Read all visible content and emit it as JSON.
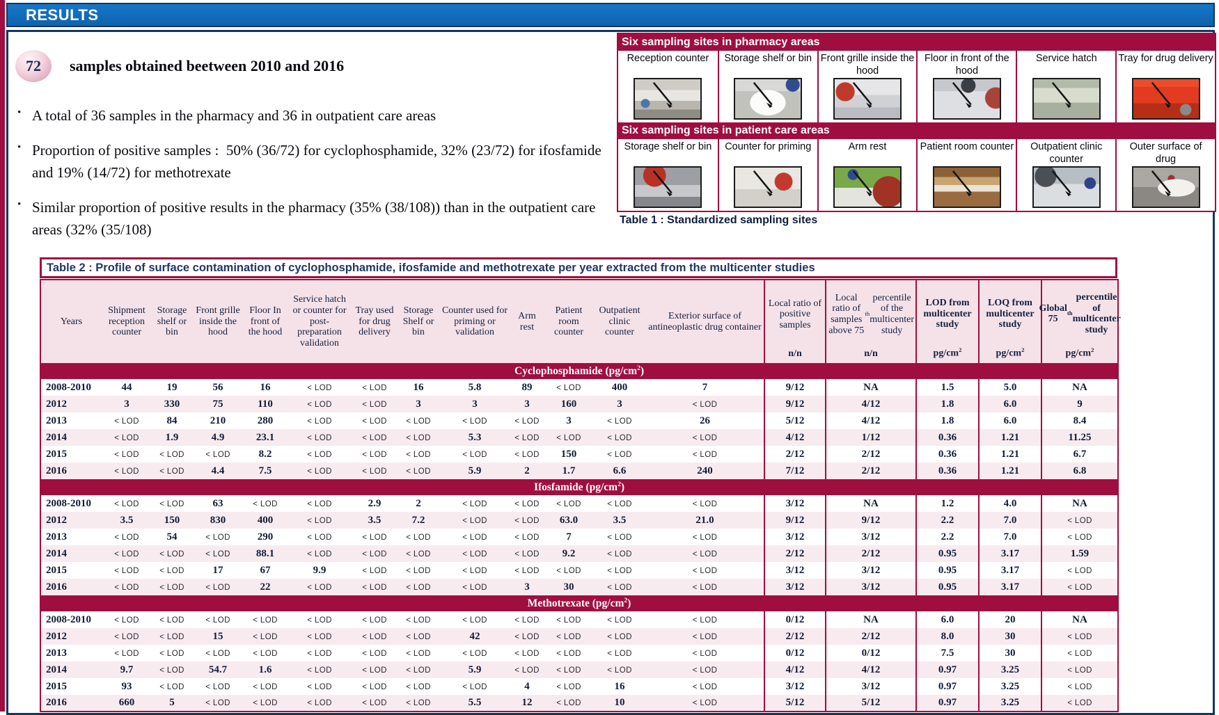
{
  "colors": {
    "accent_maroon": "#a00e3f",
    "header_blue": "#1168b5",
    "frame_navy": "#16355f",
    "row_pink": "#f8ebf0",
    "header_cell_pink": "#f5e2e9",
    "badge_pink": "#e3aec3"
  },
  "header": {
    "title": "RESULTS"
  },
  "summary": {
    "badge": "72",
    "badge_caption": "samples obtained beetween 2010 and 2016",
    "bullets": [
      "A total of 36 samples in the pharmacy and 36 in outpatient care areas",
      "Proportion of positive samples :  50% (36/72) for cyclophosphamide, 32% (23/72) for ifosfamide and 19% (14/72) for methotrexate",
      "Similar proportion of positive results in the pharmacy (35% (38/108)) than in the outpatient care areas (32% (35/108)"
    ]
  },
  "table1": {
    "caption": "Table 1 : Standardized sampling sites",
    "sections": [
      {
        "title": "Six sampling sites in pharmacy areas",
        "sites": [
          {
            "label": "Reception counter",
            "tone": "reception"
          },
          {
            "label": "Storage shelf or bin",
            "tone": "bin-white"
          },
          {
            "label": "Front grille inside the hood",
            "tone": "grille"
          },
          {
            "label": "Floor in front of the hood",
            "tone": "floor"
          },
          {
            "label": "Service hatch",
            "tone": "hatch"
          },
          {
            "label": "Tray for drug delivery",
            "tone": "tray"
          }
        ]
      },
      {
        "title": "Six sampling sites in patient care areas",
        "sites": [
          {
            "label": "Storage shelf or bin",
            "tone": "bin-grey"
          },
          {
            "label": "Counter for priming",
            "tone": "priming"
          },
          {
            "label": "Arm rest",
            "tone": "armrest"
          },
          {
            "label": "Patient room counter",
            "tone": "patient-room"
          },
          {
            "label": "Outpatient clinic counter",
            "tone": "clinic"
          },
          {
            "label": "Outer surface of drug",
            "tone": "drug-bag"
          }
        ]
      }
    ]
  },
  "table2": {
    "title": "Table 2 : Profile of surface contamination of cyclophosphamide, ifosfamide and methotrexate per year extracted from the multicenter studies",
    "columns": [
      {
        "label": "Years"
      },
      {
        "label": "Shipment reception counter"
      },
      {
        "label": "Storage shelf or bin"
      },
      {
        "label": "Front grille inside the hood"
      },
      {
        "label": "Floor In front of the hood"
      },
      {
        "label": "Service hatch or counter for post-preparation validation"
      },
      {
        "label": "Tray used for drug delivery"
      },
      {
        "label": "Storage Shelf or bin"
      },
      {
        "label": "Counter used for priming or validation"
      },
      {
        "label": "Arm rest"
      },
      {
        "label": "Patient room counter"
      },
      {
        "label": "Outpatient clinic counter"
      },
      {
        "label": "Exterior surface of antineoplastic drug container"
      },
      {
        "label": "Local ratio of positive samples",
        "unit": "n/n"
      },
      {
        "label": "Local ratio of samples above 75^th percentile of the multicenter study",
        "unit": "n/n"
      },
      {
        "label": "LOD from multicenter study",
        "unit": "pg/cm^2",
        "bold": true
      },
      {
        "label": "LOQ from multicenter study",
        "unit": "pg/cm^2",
        "bold": true
      },
      {
        "label": "Global 75^th percentile of multicenter study",
        "unit": "pg/cm^2",
        "bold": true
      }
    ],
    "sections": [
      {
        "name": "Cyclophosphamide (pg/cm^2)",
        "rows": [
          [
            "2008-2010",
            "44",
            "19",
            "56",
            "16",
            "< LOD",
            "< LOD",
            "16",
            "5.8",
            "89",
            "< LOD",
            "400",
            "7",
            "9/12",
            "NA",
            "1.5",
            "5.0",
            "NA"
          ],
          [
            "2012",
            "3",
            "330",
            "75",
            "110",
            "< LOD",
            "< LOD",
            "3",
            "3",
            "3",
            "160",
            "3",
            "< LOD",
            "9/12",
            "4/12",
            "1.8",
            "6.0",
            "9"
          ],
          [
            "2013",
            "< LOD",
            "84",
            "210",
            "280",
            "< LOD",
            "< LOD",
            "< LOD",
            "< LOD",
            "< LOD",
            "3",
            "< LOD",
            "26",
            "5/12",
            "4/12",
            "1.8",
            "6.0",
            "8.4"
          ],
          [
            "2014",
            "< LOD",
            "1.9",
            "4.9",
            "23.1",
            "< LOD",
            "< LOD",
            "< LOD",
            "5.3",
            "< LOD",
            "< LOD",
            "< LOD",
            "< LOD",
            "4/12",
            "1/12",
            "0.36",
            "1.21",
            "11.25"
          ],
          [
            "2015",
            "< LOD",
            "< LOD",
            "< LOD",
            "8.2",
            "< LOD",
            "< LOD",
            "< LOD",
            "< LOD",
            "< LOD",
            "150",
            "< LOD",
            "< LOD",
            "2/12",
            "2/12",
            "0.36",
            "1.21",
            "6.7"
          ],
          [
            "2016",
            "< LOD",
            "< LOD",
            "4.4",
            "7.5",
            "< LOD",
            "< LOD",
            "< LOD",
            "5.9",
            "2",
            "1.7",
            "6.6",
            "240",
            "7/12",
            "2/12",
            "0.36",
            "1.21",
            "6.8"
          ]
        ]
      },
      {
        "name": "Ifosfamide (pg/cm^2)",
        "rows": [
          [
            "2008-2010",
            "< LOD",
            "< LOD",
            "63",
            "< LOD",
            "< LOD",
            "2.9",
            "2",
            "< LOD",
            "< LOD",
            "< LOD",
            "< LOD",
            "< LOD",
            "3/12",
            "NA",
            "1.2",
            "4.0",
            "NA"
          ],
          [
            "2012",
            "3.5",
            "150",
            "830",
            "400",
            "< LOD",
            "3.5",
            "7.2",
            "< LOD",
            "< LOD",
            "63.0",
            "3.5",
            "21.0",
            "9/12",
            "9/12",
            "2.2",
            "7.0",
            "< LOD"
          ],
          [
            "2013",
            "< LOD",
            "54",
            "< LOD",
            "290",
            "< LOD",
            "< LOD",
            "< LOD",
            "< LOD",
            "< LOD",
            "7",
            "< LOD",
            "< LOD",
            "3/12",
            "3/12",
            "2.2",
            "7.0",
            "< LOD"
          ],
          [
            "2014",
            "< LOD",
            "< LOD",
            "< LOD",
            "88.1",
            "< LOD",
            "< LOD",
            "< LOD",
            "< LOD",
            "< LOD",
            "9.2",
            "< LOD",
            "< LOD",
            "2/12",
            "2/12",
            "0.95",
            "3.17",
            "1.59"
          ],
          [
            "2015",
            "< LOD",
            "< LOD",
            "17",
            "67",
            "9.9",
            "< LOD",
            "< LOD",
            "< LOD",
            "< LOD",
            "< LOD",
            "< LOD",
            "< LOD",
            "3/12",
            "3/12",
            "0.95",
            "3.17",
            "< LOD"
          ],
          [
            "2016",
            "< LOD",
            "< LOD",
            "< LOD",
            "22",
            "< LOD",
            "< LOD",
            "< LOD",
            "< LOD",
            "3",
            "30",
            "< LOD",
            "< LOD",
            "3/12",
            "3/12",
            "0.95",
            "3.17",
            "< LOD"
          ]
        ]
      },
      {
        "name": "Methotrexate (pg/cm^2)",
        "rows": [
          [
            "2008-2010",
            "< LOD",
            "< LOD",
            "< LOD",
            "< LOD",
            "< LOD",
            "< LOD",
            "< LOD",
            "< LOD",
            "< LOD",
            "< LOD",
            "< LOD",
            "< LOD",
            "0/12",
            "NA",
            "6.0",
            "20",
            "NA"
          ],
          [
            "2012",
            "< LOD",
            "< LOD",
            "15",
            "< LOD",
            "< LOD",
            "< LOD",
            "< LOD",
            "42",
            "< LOD",
            "< LOD",
            "< LOD",
            "< LOD",
            "2/12",
            "2/12",
            "8.0",
            "30",
            "< LOD"
          ],
          [
            "2013",
            "< LOD",
            "< LOD",
            "< LOD",
            "< LOD",
            "< LOD",
            "< LOD",
            "< LOD",
            "< LOD",
            "< LOD",
            "< LOD",
            "< LOD",
            "< LOD",
            "0/12",
            "0/12",
            "7.5",
            "30",
            "< LOD"
          ],
          [
            "2014",
            "9.7",
            "< LOD",
            "54.7",
            "1.6",
            "< LOD",
            "< LOD",
            "< LOD",
            "5.9",
            "< LOD",
            "< LOD",
            "< LOD",
            "< LOD",
            "4/12",
            "4/12",
            "0.97",
            "3.25",
            "< LOD"
          ],
          [
            "2015",
            "93",
            "< LOD",
            "< LOD",
            "< LOD",
            "< LOD",
            "< LOD",
            "< LOD",
            "< LOD",
            "4",
            "< LOD",
            "16",
            "< LOD",
            "3/12",
            "3/12",
            "0.97",
            "3.25",
            "< LOD"
          ],
          [
            "2016",
            "660",
            "5",
            "< LOD",
            "< LOD",
            "< LOD",
            "< LOD",
            "< LOD",
            "5.5",
            "12",
            "< LOD",
            "10",
            "< LOD",
            "5/12",
            "5/12",
            "0.97",
            "3.25",
            "< LOD"
          ]
        ]
      }
    ]
  }
}
